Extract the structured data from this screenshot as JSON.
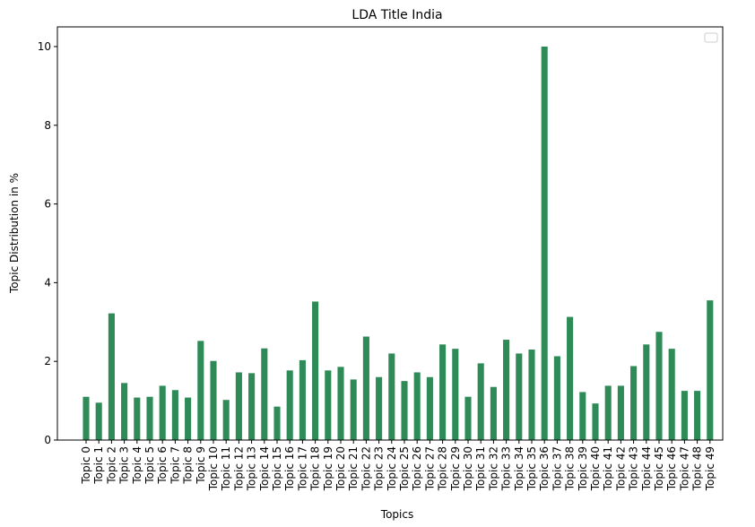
{
  "chart_data": {
    "type": "bar",
    "title": "LDA Title India",
    "xlabel": "Topics",
    "ylabel": "Topic Distribution in %",
    "ylim": [
      0,
      10.5
    ],
    "yticks": [
      "0",
      "2",
      "4",
      "6",
      "8",
      "10"
    ],
    "ytick_values": [
      0,
      2,
      4,
      6,
      8,
      10
    ],
    "grid": false,
    "legend": "top-right (empty)",
    "bar_color": "#2e8b57",
    "categories": [
      "Topic 0",
      "Topic 1",
      "Topic 2",
      "Topic 3",
      "Topic 4",
      "Topic 5",
      "Topic 6",
      "Topic 7",
      "Topic 8",
      "Topic 9",
      "Topic 10",
      "Topic 11",
      "Topic 12",
      "Topic 13",
      "Topic 14",
      "Topic 15",
      "Topic 16",
      "Topic 17",
      "Topic 18",
      "Topic 19",
      "Topic 20",
      "Topic 21",
      "Topic 22",
      "Topic 23",
      "Topic 24",
      "Topic 25",
      "Topic 26",
      "Topic 27",
      "Topic 28",
      "Topic 29",
      "Topic 30",
      "Topic 31",
      "Topic 32",
      "Topic 33",
      "Topic 34",
      "Topic 35",
      "Topic 36",
      "Topic 37",
      "Topic 38",
      "Topic 39",
      "Topic 40",
      "Topic 41",
      "Topic 42",
      "Topic 43",
      "Topic 44",
      "Topic 45",
      "Topic 46",
      "Topic 47",
      "Topic 48",
      "Topic 49"
    ],
    "values": [
      1.1,
      0.95,
      3.22,
      1.45,
      1.08,
      1.1,
      1.38,
      1.27,
      1.08,
      2.52,
      2.01,
      1.02,
      1.72,
      1.7,
      2.33,
      0.85,
      1.77,
      2.03,
      3.52,
      1.77,
      1.86,
      1.54,
      2.63,
      1.6,
      2.2,
      1.5,
      1.72,
      1.6,
      2.43,
      2.32,
      1.1,
      1.95,
      1.35,
      2.55,
      2.2,
      2.3,
      10.0,
      2.13,
      3.13,
      1.22,
      0.93,
      1.38,
      1.38,
      1.88,
      2.43,
      2.75,
      2.32,
      1.25,
      1.25,
      3.55
    ]
  }
}
